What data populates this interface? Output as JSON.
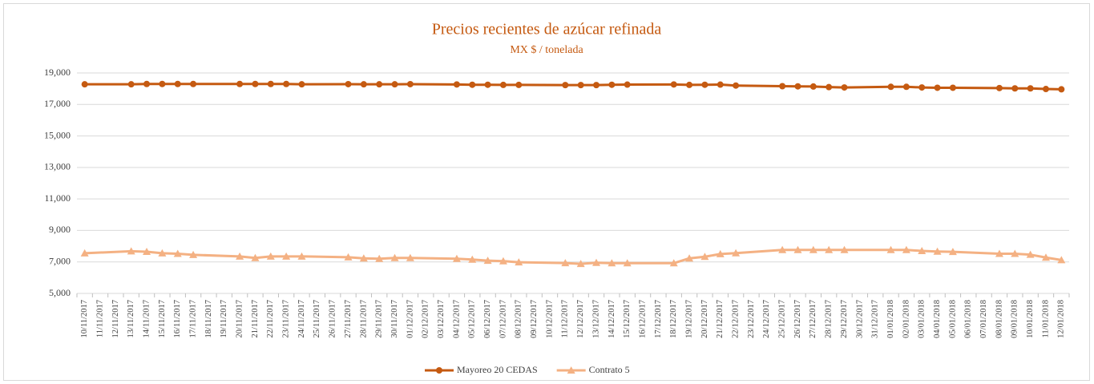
{
  "chart_data": {
    "type": "line",
    "title": "Precios recientes de azúcar refinada",
    "subtitle": "MX $ / tonelada",
    "categories": [
      "10/11/2017",
      "11/11/2017",
      "12/11/2017",
      "13/11/2017",
      "14/11/2017",
      "15/11/2017",
      "16/11/2017",
      "17/11/2017",
      "18/11/2017",
      "19/11/2017",
      "20/11/2017",
      "21/11/2017",
      "22/11/2017",
      "23/11/2017",
      "24/11/2017",
      "25/11/2017",
      "26/11/2017",
      "27/11/2017",
      "28/11/2017",
      "29/11/2017",
      "30/11/2017",
      "01/12/2017",
      "02/12/2017",
      "03/12/2017",
      "04/12/2017",
      "05/12/2017",
      "06/12/2017",
      "07/12/2017",
      "08/12/2017",
      "09/12/2017",
      "10/12/2017",
      "11/12/2017",
      "12/12/2017",
      "13/12/2017",
      "14/12/2017",
      "15/12/2017",
      "16/12/2017",
      "17/12/2017",
      "18/12/2017",
      "19/12/2017",
      "20/12/2017",
      "21/12/2017",
      "22/12/2017",
      "23/12/2017",
      "24/12/2017",
      "25/12/2017",
      "26/12/2017",
      "27/12/2017",
      "28/12/2017",
      "29/12/2017",
      "30/12/2017",
      "31/12/2017",
      "01/01/2018",
      "02/01/2018",
      "03/01/2018",
      "04/01/2018",
      "05/01/2018",
      "06/01/2018",
      "07/01/2018",
      "08/01/2018",
      "09/01/2018",
      "10/01/2018",
      "11/01/2018",
      "12/01/2018"
    ],
    "series": [
      {
        "name": "Mayoreo 20 CEDAS",
        "color": "#c55a11",
        "marker": "circle",
        "values": [
          18280,
          null,
          null,
          18280,
          18300,
          18300,
          18300,
          18300,
          null,
          null,
          18300,
          18300,
          18300,
          18300,
          18280,
          null,
          null,
          18290,
          18280,
          18280,
          18280,
          18290,
          null,
          null,
          18270,
          18250,
          18250,
          18240,
          18240,
          null,
          null,
          18230,
          18230,
          18230,
          18250,
          18260,
          null,
          null,
          18270,
          18240,
          18250,
          18260,
          18200,
          null,
          null,
          18160,
          18150,
          18140,
          18100,
          18080,
          null,
          null,
          18120,
          18120,
          18080,
          18060,
          18060,
          null,
          null,
          18040,
          18020,
          18020,
          17980,
          17960
        ]
      },
      {
        "name": "Contrato 5",
        "color": "#f4b183",
        "marker": "triangle",
        "values": [
          7550,
          null,
          null,
          7680,
          7650,
          7550,
          7520,
          7450,
          null,
          null,
          7350,
          7250,
          7350,
          7350,
          7350,
          null,
          null,
          7300,
          7230,
          7200,
          7250,
          7250,
          null,
          null,
          7200,
          7150,
          7080,
          7050,
          6980,
          null,
          null,
          6930,
          6880,
          6950,
          6920,
          6920,
          null,
          null,
          6920,
          7230,
          7330,
          7500,
          7560,
          null,
          null,
          7760,
          7760,
          7760,
          7760,
          7760,
          null,
          null,
          7760,
          7760,
          7700,
          7660,
          7640,
          null,
          null,
          7520,
          7520,
          7460,
          7280,
          7120
        ]
      }
    ],
    "ylim": [
      5000,
      19000
    ],
    "yticks": [
      {
        "value": 5000,
        "label": "5,000"
      },
      {
        "value": 7000,
        "label": "7,000"
      },
      {
        "value": 9000,
        "label": "9,000"
      },
      {
        "value": 11000,
        "label": "11,000"
      },
      {
        "value": 13000,
        "label": "13,000"
      },
      {
        "value": 15000,
        "label": "15,000"
      },
      {
        "value": 17000,
        "label": "17,000"
      },
      {
        "value": 19000,
        "label": "19,000"
      }
    ],
    "grid": true,
    "legend": "bottom",
    "connect_gaps": true
  }
}
